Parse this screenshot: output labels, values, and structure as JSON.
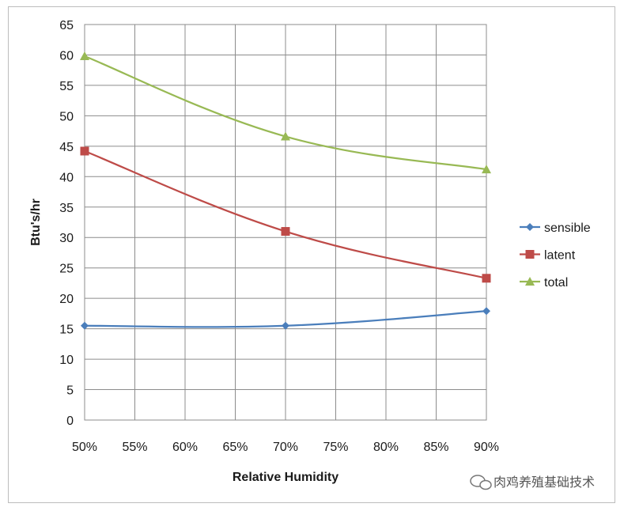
{
  "chart_data": {
    "type": "line",
    "xlabel": "Relative Humidity",
    "ylabel": "Btu's/hr",
    "x_ticks": [
      "50%",
      "55%",
      "60%",
      "65%",
      "70%",
      "75%",
      "80%",
      "85%",
      "90%"
    ],
    "y_ticks": [
      "0",
      "5",
      "10",
      "15",
      "20",
      "25",
      "30",
      "35",
      "40",
      "45",
      "50",
      "55",
      "60",
      "65"
    ],
    "ylim": [
      0,
      65
    ],
    "xlim": [
      50,
      90
    ],
    "grid": true,
    "legend_position": "right",
    "series": [
      {
        "name": "sensible",
        "color": "#4a7ebb",
        "marker": "diamond",
        "x": [
          50,
          70,
          90
        ],
        "y": [
          15.5,
          15.5,
          17.9
        ]
      },
      {
        "name": "latent",
        "color": "#be4b48",
        "marker": "square",
        "x": [
          50,
          70,
          90
        ],
        "y": [
          44.2,
          31.0,
          23.3
        ]
      },
      {
        "name": "total",
        "color": "#98b954",
        "marker": "triangle",
        "x": [
          50,
          70,
          90
        ],
        "y": [
          59.8,
          46.6,
          41.2
        ]
      }
    ]
  },
  "watermark": {
    "text": "肉鸡养殖基础技术",
    "icon": "wechat-icon"
  }
}
